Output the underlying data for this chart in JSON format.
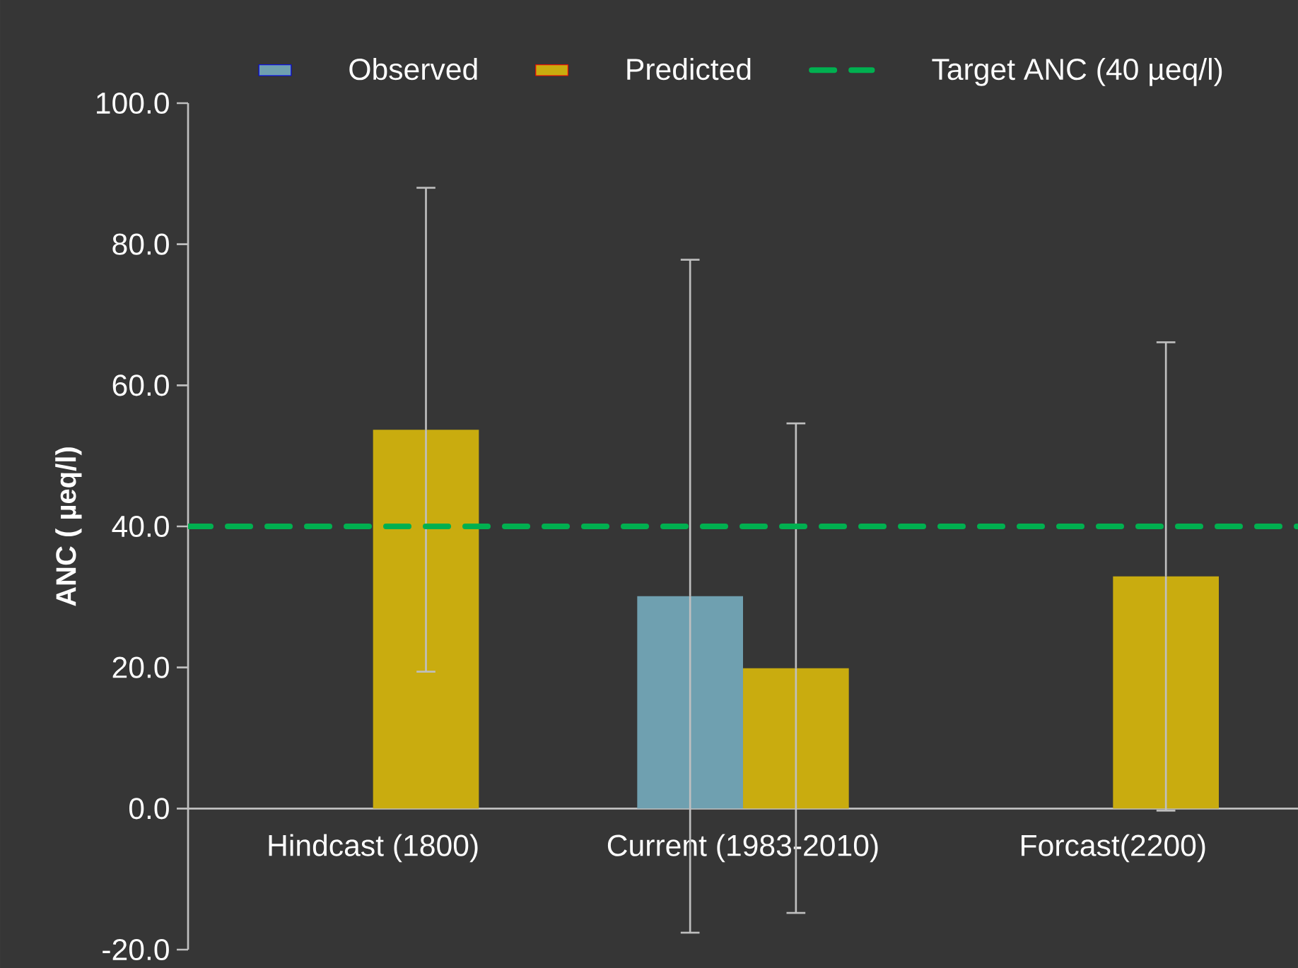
{
  "chart_data": {
    "type": "bar",
    "categories": [
      "Hindcast (1800)",
      "Current (1983-2010)",
      "Forcast(2200)"
    ],
    "ylabel": "ANC ( µeq/l)",
    "ylim": [
      -20,
      100
    ],
    "yticks": [
      {
        "value": -20,
        "label": "-20.0"
      },
      {
        "value": 0,
        "label": "0.0"
      },
      {
        "value": 20,
        "label": "20.0"
      },
      {
        "value": 40,
        "label": "40.0"
      },
      {
        "value": 60,
        "label": "60.0"
      },
      {
        "value": 80,
        "label": "80.0"
      },
      {
        "value": 100,
        "label": "100.0"
      }
    ],
    "series": [
      {
        "name": "Observed",
        "color": "#6fa0b0",
        "values": [
          null,
          30.1,
          null
        ],
        "errors": [
          null,
          47.7,
          null
        ]
      },
      {
        "name": "Predicted",
        "color": "#c9ac0f",
        "values": [
          53.7,
          19.9,
          32.9
        ],
        "errors": [
          34.3,
          34.7,
          33.2
        ]
      }
    ],
    "ref_lines": [
      {
        "axis": "y",
        "value": 40,
        "label": "Target ANC (40 µeq/l)",
        "color": "#00b050",
        "line_style": "dashed"
      }
    ],
    "legend": "top",
    "grid": false
  }
}
